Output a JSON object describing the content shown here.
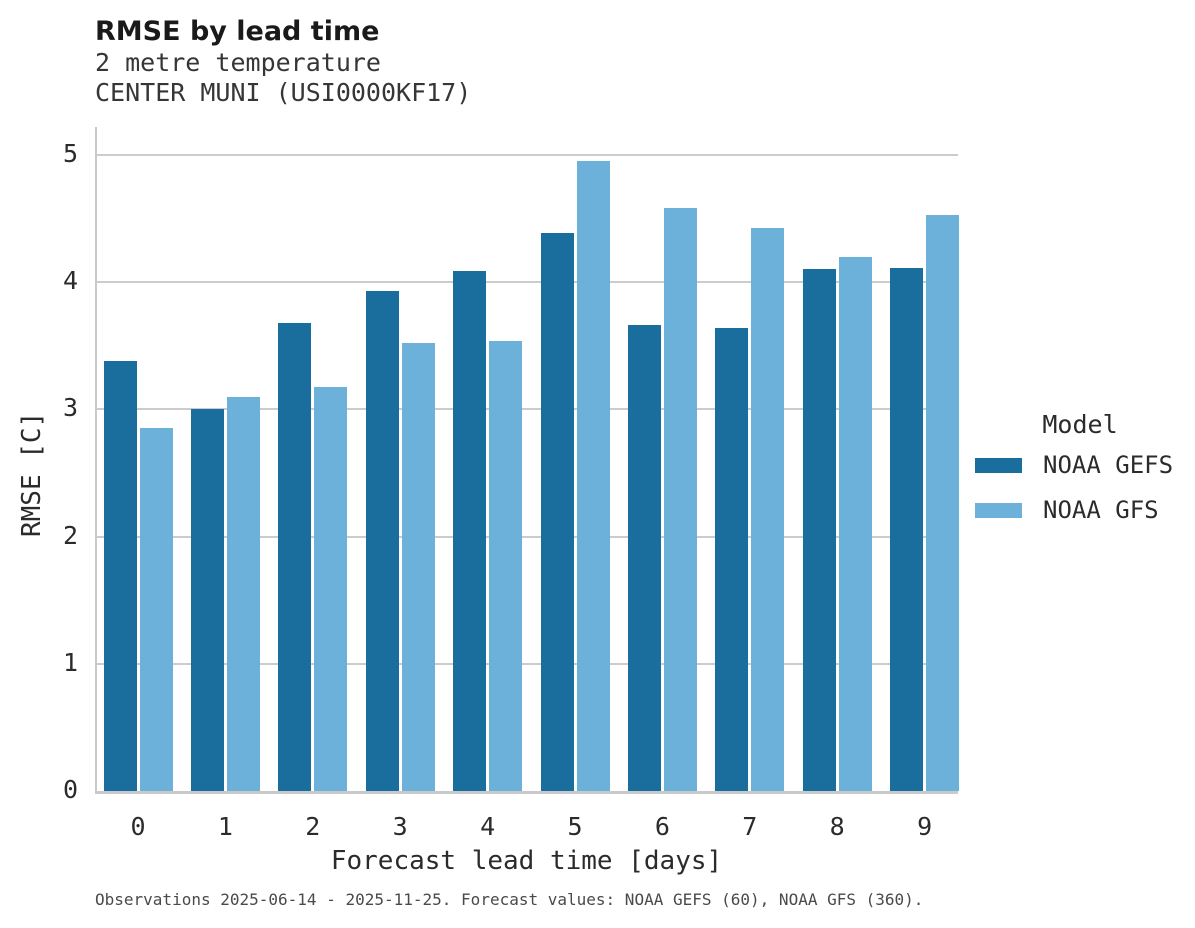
{
  "header": {
    "title": "RMSE by lead time",
    "subtitle_line1": "2 metre temperature",
    "subtitle_line2": "CENTER MUNI (USI0000KF17)"
  },
  "chart_data": {
    "type": "bar",
    "title": "RMSE by lead time",
    "subtitle": "2 metre temperature — CENTER MUNI (USI0000KF17)",
    "categories": [
      "0",
      "1",
      "2",
      "3",
      "4",
      "5",
      "6",
      "7",
      "8",
      "9"
    ],
    "series": [
      {
        "name": "NOAA GEFS",
        "color": "#196E9E",
        "values": [
          3.38,
          3.0,
          3.68,
          3.93,
          4.09,
          4.39,
          3.66,
          3.64,
          4.1,
          4.11
        ]
      },
      {
        "name": "NOAA GFS",
        "color": "#6CB1D9",
        "values": [
          2.85,
          3.1,
          3.18,
          3.52,
          3.54,
          4.95,
          4.58,
          4.43,
          4.2,
          4.53
        ]
      }
    ],
    "xlabel": "Forecast lead time [days]",
    "ylabel": "RMSE [C]",
    "ylim": [
      0,
      5
    ],
    "yticks": [
      0,
      1,
      2,
      3,
      4,
      5
    ],
    "grid": true,
    "gridline_color": "#cccccc",
    "legend_title": "Model",
    "legend_position": "right"
  },
  "legend": {
    "title": "Model",
    "entries": [
      {
        "label": "NOAA GEFS",
        "color": "#196E9E"
      },
      {
        "label": "NOAA GFS",
        "color": "#6CB1D9"
      }
    ]
  },
  "footer": {
    "caption": "Observations 2025-06-14 - 2025-11-25. Forecast values: NOAA GEFS (60), NOAA GFS (360)."
  }
}
